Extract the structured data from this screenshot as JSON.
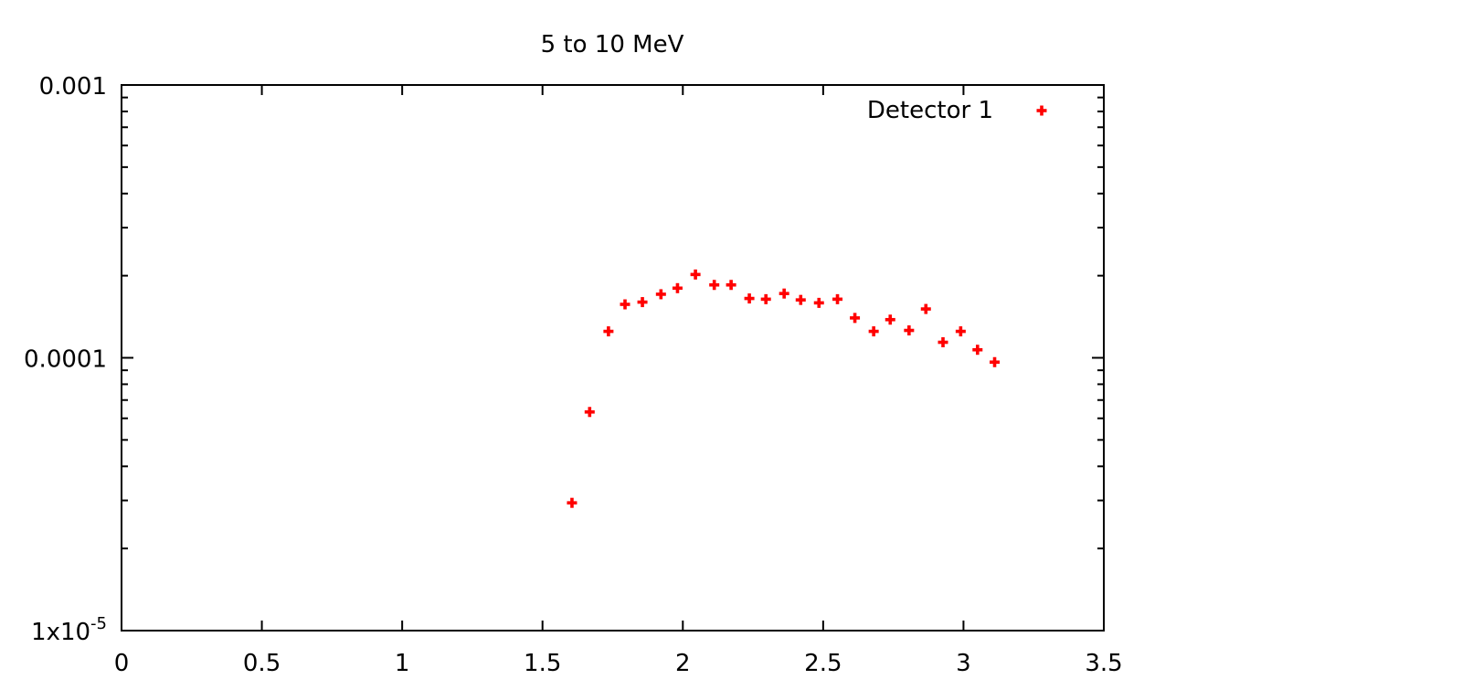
{
  "chart_data": {
    "type": "scatter",
    "title": "5 to 10 MeV",
    "background": "#ffffff",
    "axis_color": "#000000",
    "legend": {
      "position": "top-right-inside"
    },
    "x_axis": {
      "scale": "linear",
      "min": 0,
      "max": 3.5,
      "ticks": [
        0,
        0.5,
        1,
        1.5,
        2,
        2.5,
        3,
        3.5
      ],
      "tick_labels": [
        "0",
        "0.5",
        "1",
        "1.5",
        "2",
        "2.5",
        "3",
        "3.5"
      ]
    },
    "y_axis": {
      "scale": "log",
      "min": 1e-05,
      "max": 0.001,
      "ticks": [
        0.001,
        0.0001,
        1e-05
      ],
      "tick_labels": [
        {
          "base": "0.001",
          "sup": ""
        },
        {
          "base": "0.0001",
          "sup": ""
        },
        {
          "base": "1x10",
          "sup": "-5"
        }
      ],
      "minor_ticks_per_decade": true
    },
    "series": [
      {
        "name": "Detector 1",
        "marker": "plus",
        "color": "#ff0000",
        "points": [
          [
            1.605,
            2.94e-05
          ],
          [
            1.668,
            6.33e-05
          ],
          [
            1.735,
            0.000125
          ],
          [
            1.794,
            0.000157
          ],
          [
            1.856,
            0.00016
          ],
          [
            1.922,
            0.000171
          ],
          [
            1.981,
            0.00018
          ],
          [
            2.045,
            0.000202
          ],
          [
            2.112,
            0.000185
          ],
          [
            2.172,
            0.000185
          ],
          [
            2.237,
            0.000165
          ],
          [
            2.296,
            0.000164
          ],
          [
            2.361,
            0.000172
          ],
          [
            2.42,
            0.000163
          ],
          [
            2.485,
            0.000159
          ],
          [
            2.551,
            0.000164
          ],
          [
            2.613,
            0.00014
          ],
          [
            2.68,
            0.000125
          ],
          [
            2.739,
            0.000138
          ],
          [
            2.806,
            0.000126
          ],
          [
            2.866,
            0.000151
          ],
          [
            2.927,
            0.000114
          ],
          [
            2.99,
            0.000125
          ],
          [
            3.05,
            0.000107
          ],
          [
            3.111,
            9.64e-05
          ]
        ]
      }
    ]
  }
}
